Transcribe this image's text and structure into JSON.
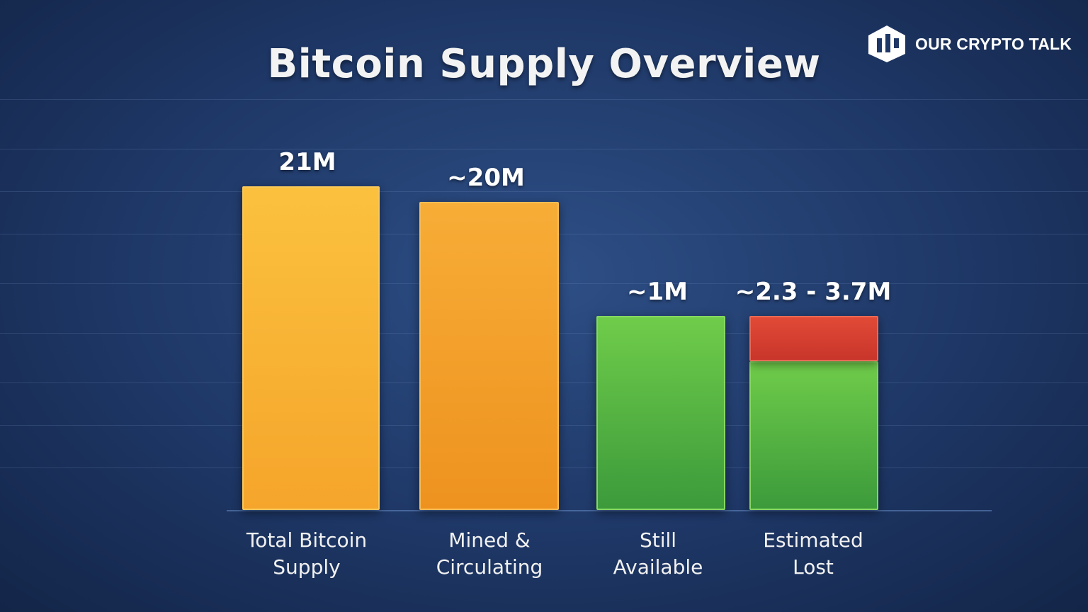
{
  "brand": {
    "name": "OUR CRYPTO TALK",
    "logo_icon": "cube-logo-icon"
  },
  "colors": {
    "background": "#1e3766",
    "orange": "#f5a52b",
    "green": "#4fb43f",
    "red": "#d2402f",
    "text": "#ffffff"
  },
  "chart_data": {
    "type": "bar",
    "title": "Bitcoin Supply Overview",
    "xlabel": "",
    "ylabel": "",
    "ylim": [
      0,
      21
    ],
    "grid": true,
    "categories": [
      {
        "line1": "Total Bitcoin",
        "line2": "Supply"
      },
      {
        "line1": "Mined &",
        "line2": "Circulating"
      },
      {
        "line1": "Still",
        "line2": "Available"
      },
      {
        "line1": "Estimated",
        "line2": "Lost"
      }
    ],
    "values": [
      21,
      20,
      1,
      3.7
    ],
    "value_labels": [
      "21M",
      "~20M",
      "~1M",
      "~2.3 - 3.7M"
    ],
    "lost_range": {
      "low": 2.3,
      "high": 3.7
    },
    "units": "million BTC"
  }
}
